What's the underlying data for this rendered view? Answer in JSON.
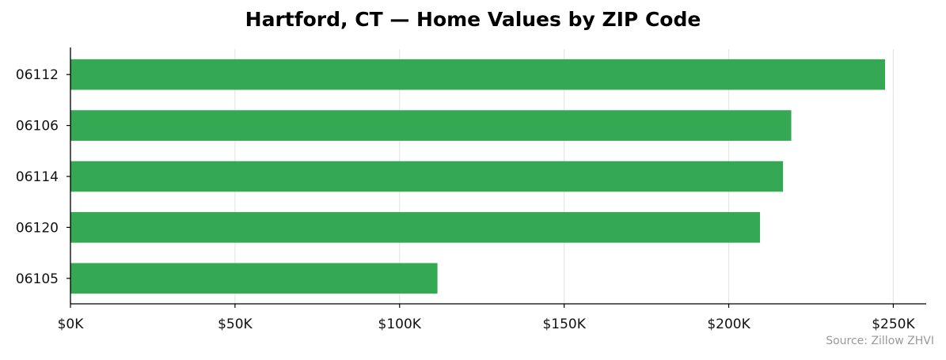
{
  "chart_data": {
    "type": "bar",
    "orientation": "horizontal",
    "title": "Hartford, CT — Home Values by ZIP Code",
    "source": "Source: Zillow ZHVI",
    "categories": [
      "06112",
      "06106",
      "06114",
      "06120",
      "06105"
    ],
    "values": [
      247500,
      219000,
      216500,
      209500,
      111500
    ],
    "xlim": [
      0,
      260000
    ],
    "x_ticks": [
      0,
      50000,
      100000,
      150000,
      200000,
      250000
    ],
    "x_tick_labels": [
      "$0K",
      "$50K",
      "$100K",
      "$150K",
      "$200K",
      "$250K"
    ],
    "xlabel": "",
    "ylabel": "",
    "grid": "vertical",
    "bar_color": "#34a853",
    "grid_color": "#e6e6e6",
    "axis_color": "#000000"
  }
}
